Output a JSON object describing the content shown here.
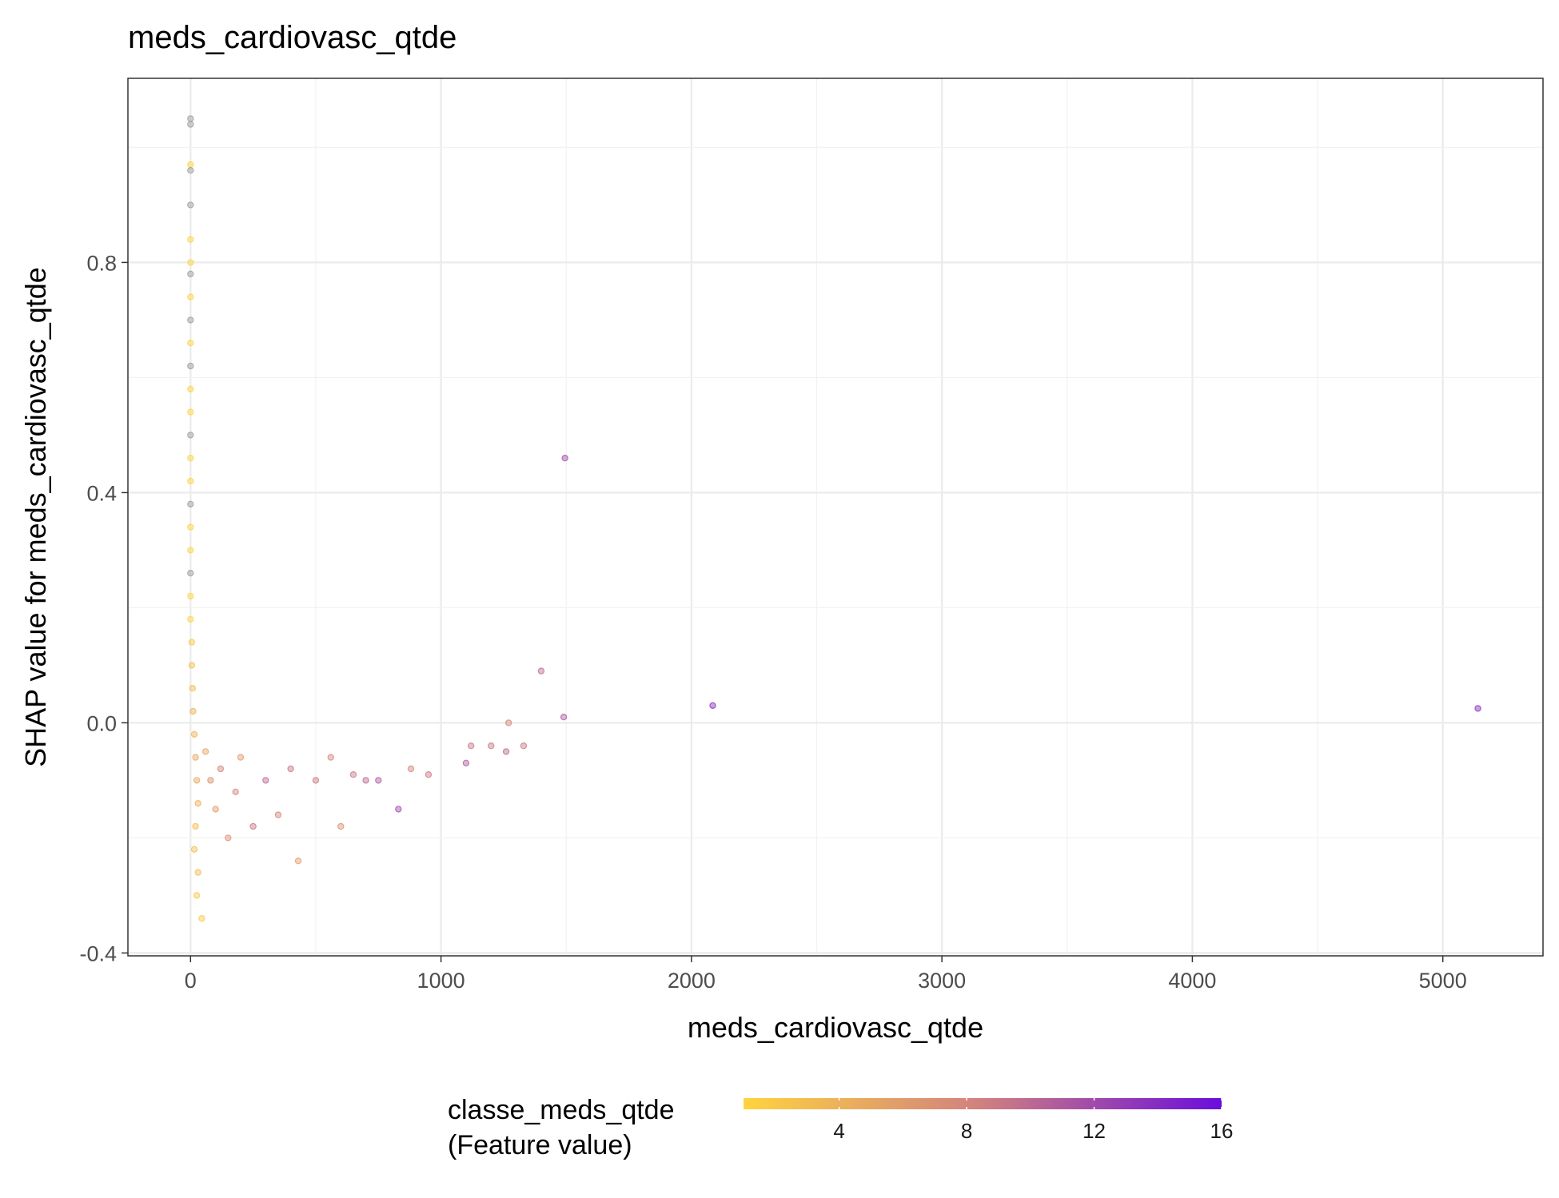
{
  "chart_data": {
    "type": "scatter",
    "title": "meds_cardiovasc_qtde",
    "xlabel": "meds_cardiovasc_qtde",
    "ylabel": "SHAP value for meds_cardiovasc_qtde",
    "xlim": [
      -250,
      5400
    ],
    "ylim": [
      -0.405,
      1.12
    ],
    "x_ticks": [
      0,
      1000,
      2000,
      3000,
      4000,
      5000
    ],
    "x_tick_labels": [
      "0",
      "1000",
      "2000",
      "3000",
      "4000",
      "5000"
    ],
    "y_ticks": [
      -0.4,
      0,
      0.4,
      0.8
    ],
    "y_tick_labels": [
      "-0.4",
      "0.0",
      "0.4",
      "0.8"
    ],
    "grid": true,
    "legend": {
      "title_line1": "classe_meds_qtde",
      "title_line2": "(Feature value)",
      "position": "bottom",
      "range": [
        1,
        16
      ],
      "ticks": [
        4,
        8,
        12,
        16
      ],
      "tick_labels": [
        "4",
        "8",
        "12",
        "16"
      ],
      "color_low": "#ffd33f",
      "color_mid": "#d08080",
      "color_high": "#6a0ddc",
      "na_color": "#999999"
    },
    "series": [
      {
        "points": [
          {
            "x": 0,
            "y": 1.05,
            "c": null
          },
          {
            "x": 0,
            "y": 1.04,
            "c": null
          },
          {
            "x": 0,
            "y": 0.97,
            "c": 1
          },
          {
            "x": 0,
            "y": 0.96,
            "c": null
          },
          {
            "x": 0,
            "y": 0.9,
            "c": null
          },
          {
            "x": 0,
            "y": 0.84,
            "c": 1
          },
          {
            "x": 0,
            "y": 0.8,
            "c": 1
          },
          {
            "x": 0,
            "y": 0.78,
            "c": null
          },
          {
            "x": 0,
            "y": 0.74,
            "c": 1
          },
          {
            "x": 0,
            "y": 0.7,
            "c": null
          },
          {
            "x": 0,
            "y": 0.66,
            "c": 1
          },
          {
            "x": 0,
            "y": 0.62,
            "c": null
          },
          {
            "x": 0,
            "y": 0.58,
            "c": 1
          },
          {
            "x": 0,
            "y": 0.54,
            "c": 1
          },
          {
            "x": 0,
            "y": 0.5,
            "c": null
          },
          {
            "x": 0,
            "y": 0.46,
            "c": 1
          },
          {
            "x": 0,
            "y": 0.42,
            "c": 1
          },
          {
            "x": 0,
            "y": 0.38,
            "c": null
          },
          {
            "x": 0,
            "y": 0.34,
            "c": 1
          },
          {
            "x": 0,
            "y": 0.3,
            "c": 1
          },
          {
            "x": 0,
            "y": 0.26,
            "c": null
          },
          {
            "x": 0,
            "y": 0.22,
            "c": 1
          },
          {
            "x": 0,
            "y": 0.18,
            "c": 1
          },
          {
            "x": 5,
            "y": 0.14,
            "c": 2
          },
          {
            "x": 5,
            "y": 0.1,
            "c": 3
          },
          {
            "x": 8,
            "y": 0.06,
            "c": 3
          },
          {
            "x": 10,
            "y": 0.02,
            "c": 4
          },
          {
            "x": 15,
            "y": -0.02,
            "c": 4
          },
          {
            "x": 20,
            "y": -0.06,
            "c": 5
          },
          {
            "x": 25,
            "y": -0.1,
            "c": 5
          },
          {
            "x": 30,
            "y": -0.14,
            "c": 4
          },
          {
            "x": 20,
            "y": -0.18,
            "c": 3
          },
          {
            "x": 15,
            "y": -0.22,
            "c": 3
          },
          {
            "x": 30,
            "y": -0.26,
            "c": 3
          },
          {
            "x": 25,
            "y": -0.3,
            "c": 2
          },
          {
            "x": 45,
            "y": -0.34,
            "c": 2
          },
          {
            "x": 60,
            "y": -0.05,
            "c": 5
          },
          {
            "x": 80,
            "y": -0.1,
            "c": 7
          },
          {
            "x": 100,
            "y": -0.15,
            "c": 6
          },
          {
            "x": 120,
            "y": -0.08,
            "c": 8
          },
          {
            "x": 150,
            "y": -0.2,
            "c": 7
          },
          {
            "x": 180,
            "y": -0.12,
            "c": 8
          },
          {
            "x": 200,
            "y": -0.06,
            "c": 6
          },
          {
            "x": 250,
            "y": -0.18,
            "c": 9
          },
          {
            "x": 300,
            "y": -0.1,
            "c": 10
          },
          {
            "x": 350,
            "y": -0.16,
            "c": 8
          },
          {
            "x": 400,
            "y": -0.08,
            "c": 9
          },
          {
            "x": 430,
            "y": -0.24,
            "c": 6
          },
          {
            "x": 500,
            "y": -0.1,
            "c": 9
          },
          {
            "x": 560,
            "y": -0.06,
            "c": 8
          },
          {
            "x": 600,
            "y": -0.18,
            "c": 7
          },
          {
            "x": 650,
            "y": -0.09,
            "c": 9
          },
          {
            "x": 700,
            "y": -0.1,
            "c": 10
          },
          {
            "x": 750,
            "y": -0.1,
            "c": 11
          },
          {
            "x": 830,
            "y": -0.15,
            "c": 12
          },
          {
            "x": 880,
            "y": -0.08,
            "c": 8
          },
          {
            "x": 950,
            "y": -0.09,
            "c": 9
          },
          {
            "x": 1100,
            "y": -0.07,
            "c": 11
          },
          {
            "x": 1120,
            "y": -0.04,
            "c": 9
          },
          {
            "x": 1200,
            "y": -0.04,
            "c": 9
          },
          {
            "x": 1260,
            "y": -0.05,
            "c": 10
          },
          {
            "x": 1270,
            "y": 0.0,
            "c": 8
          },
          {
            "x": 1330,
            "y": -0.04,
            "c": 9
          },
          {
            "x": 1400,
            "y": 0.09,
            "c": 10
          },
          {
            "x": 1490,
            "y": 0.01,
            "c": 11
          },
          {
            "x": 1495,
            "y": 0.46,
            "c": 12
          },
          {
            "x": 2085,
            "y": 0.03,
            "c": 14
          },
          {
            "x": 5140,
            "y": 0.025,
            "c": 14
          }
        ]
      }
    ]
  }
}
